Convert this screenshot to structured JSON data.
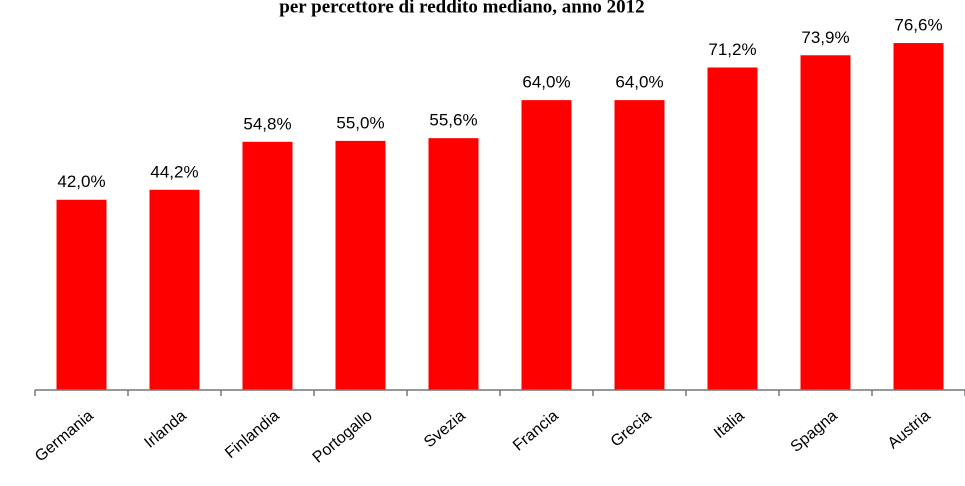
{
  "chart_data": {
    "type": "bar",
    "title": "per percettore di reddito mediano, anno 2012",
    "categories": [
      "Germania",
      "Irlanda",
      "Finlandia",
      "Portogallo",
      "Svezia",
      "Francia",
      "Grecia",
      "Italia",
      "Spagna",
      "Austria"
    ],
    "values": [
      42.0,
      44.2,
      54.8,
      55.0,
      55.6,
      64.0,
      64.0,
      71.2,
      73.9,
      76.6
    ],
    "value_labels": [
      "42,0%",
      "44,2%",
      "54,8%",
      "55,0%",
      "55,6%",
      "64,0%",
      "64,0%",
      "71,2%",
      "73,9%",
      "76,6%"
    ],
    "color": "#ff0000",
    "ylim": [
      0,
      85
    ]
  }
}
